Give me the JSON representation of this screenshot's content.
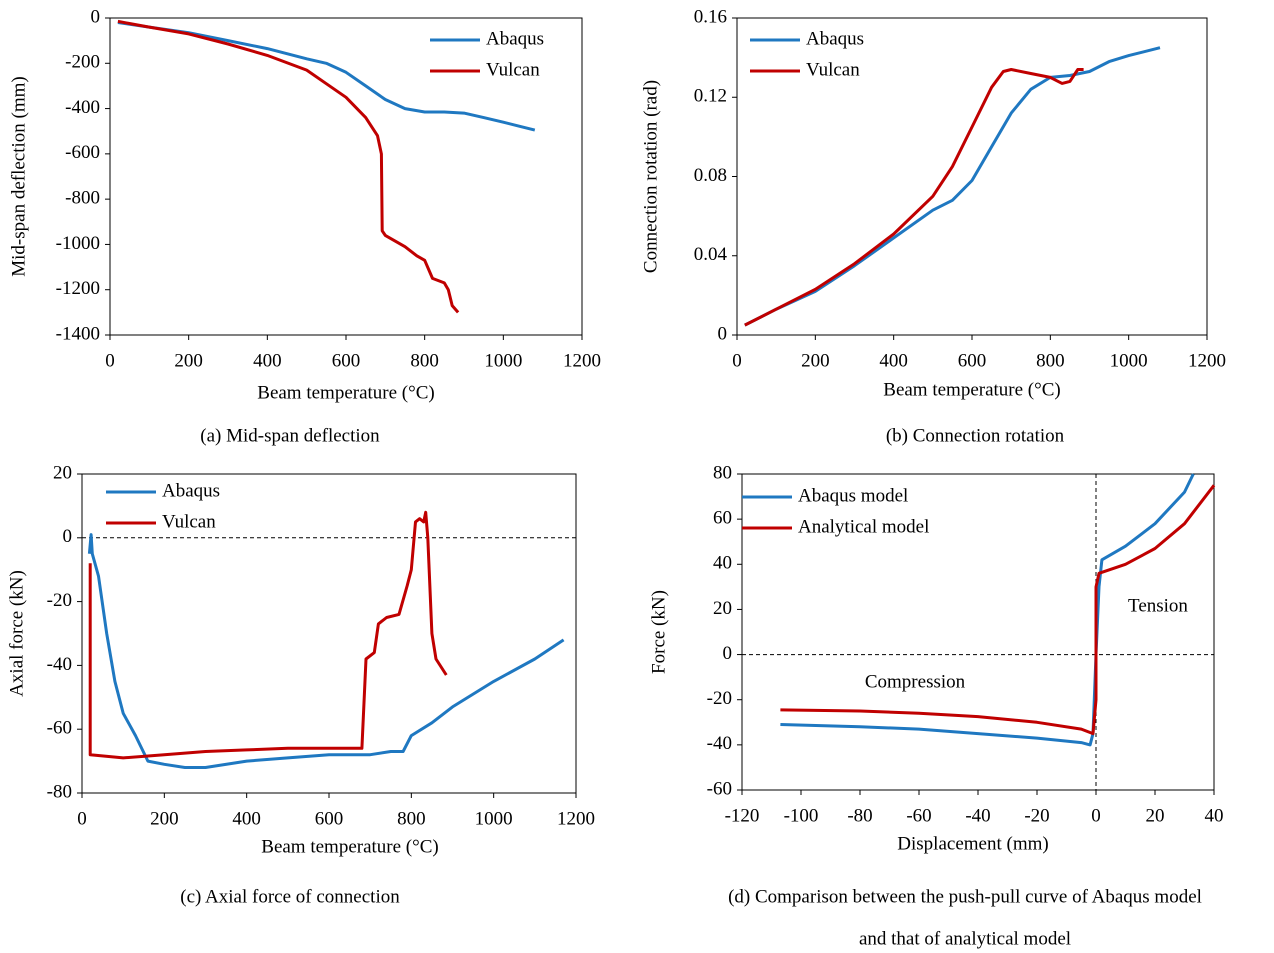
{
  "chart_data": [
    {
      "type": "line",
      "caption": [
        "(a) Mid-span deflection"
      ],
      "x_label": "Beam temperature (°C)",
      "y_label": "Mid-span deflection (mm)",
      "xlim": [
        0,
        1200
      ],
      "xticks": [
        0,
        200,
        400,
        600,
        800,
        1000,
        1200
      ],
      "ylim": [
        -1400,
        0
      ],
      "yticks": [
        0,
        -200,
        -400,
        -600,
        -800,
        -1000,
        -1200,
        -1400
      ],
      "legend": "upper right",
      "series": [
        {
          "name": "Abaqus",
          "color": "#1f78c1",
          "x": [
            20,
            100,
            200,
            300,
            400,
            500,
            550,
            600,
            650,
            700,
            750,
            800,
            850,
            900,
            950,
            1000,
            1080
          ],
          "values": [
            -20,
            -40,
            -65,
            -100,
            -135,
            -180,
            -200,
            -240,
            -300,
            -360,
            -400,
            -415,
            -415,
            -420,
            -440,
            -460,
            -495
          ]
        },
        {
          "name": "Vulcan",
          "color": "#c00000",
          "x": [
            20,
            100,
            200,
            300,
            400,
            500,
            550,
            600,
            650,
            680,
            690,
            692,
            700,
            750,
            780,
            800,
            820,
            850,
            860,
            870,
            885
          ],
          "values": [
            -15,
            -40,
            -70,
            -115,
            -165,
            -230,
            -290,
            -350,
            -440,
            -520,
            -600,
            -940,
            -960,
            -1010,
            -1050,
            -1070,
            -1150,
            -1170,
            -1200,
            -1270,
            -1300
          ]
        }
      ]
    },
    {
      "type": "line",
      "caption": [
        "(b) Connection rotation"
      ],
      "x_label": "Beam temperature (°C)",
      "y_label": "Connection rotation (rad)",
      "xlim": [
        0,
        1200
      ],
      "xticks": [
        0,
        200,
        400,
        600,
        800,
        1000,
        1200
      ],
      "ylim": [
        0,
        0.16
      ],
      "yticks": [
        0,
        0.04,
        0.08,
        0.12,
        0.16
      ],
      "legend": "upper left",
      "series": [
        {
          "name": "Abaqus",
          "color": "#1f78c1",
          "x": [
            20,
            100,
            200,
            300,
            400,
            500,
            550,
            600,
            650,
            700,
            750,
            800,
            850,
            900,
            950,
            1000,
            1080
          ],
          "values": [
            0.005,
            0.013,
            0.022,
            0.035,
            0.049,
            0.063,
            0.068,
            0.078,
            0.095,
            0.112,
            0.124,
            0.13,
            0.131,
            0.133,
            0.138,
            0.141,
            0.145
          ]
        },
        {
          "name": "Vulcan",
          "color": "#c00000",
          "x": [
            20,
            100,
            200,
            300,
            400,
            500,
            550,
            600,
            650,
            680,
            700,
            750,
            800,
            830,
            850,
            870,
            885
          ],
          "values": [
            0.005,
            0.013,
            0.023,
            0.036,
            0.051,
            0.07,
            0.085,
            0.105,
            0.125,
            0.133,
            0.134,
            0.132,
            0.13,
            0.127,
            0.128,
            0.134,
            0.134
          ]
        }
      ]
    },
    {
      "type": "line",
      "caption": [
        "(c) Axial force of connection"
      ],
      "x_label": "Beam temperature (°C)",
      "y_label": "Axial force (kN)",
      "xlim": [
        0,
        1200
      ],
      "xticks": [
        0,
        200,
        400,
        600,
        800,
        1000,
        1200
      ],
      "ylim": [
        -80,
        20
      ],
      "yticks": [
        20,
        0,
        -20,
        -40,
        -60,
        -80
      ],
      "legend": "upper left",
      "zero_line": true,
      "series": [
        {
          "name": "Abaqus",
          "color": "#1f78c1",
          "x": [
            18,
            22,
            25,
            40,
            60,
            80,
            100,
            130,
            160,
            200,
            250,
            300,
            400,
            500,
            600,
            700,
            750,
            780,
            800,
            850,
            900,
            1000,
            1100,
            1170
          ],
          "values": [
            -5,
            1,
            -5,
            -12,
            -30,
            -45,
            -55,
            -62,
            -70,
            -71,
            -72,
            -72,
            -70,
            -69,
            -68,
            -68,
            -67,
            -67,
            -62,
            -58,
            -53,
            -45,
            -38,
            -32
          ]
        },
        {
          "name": "Vulcan",
          "color": "#c00000",
          "x": [
            20,
            20,
            100,
            200,
            300,
            400,
            500,
            600,
            680,
            690,
            710,
            720,
            740,
            770,
            790,
            800,
            810,
            820,
            830,
            835,
            840,
            850,
            860,
            885
          ],
          "values": [
            -8,
            -68,
            -69,
            -68,
            -67,
            -66.5,
            -66,
            -66,
            -66,
            -38,
            -36,
            -27,
            -25,
            -24,
            -15,
            -10,
            5,
            6,
            5,
            8,
            0,
            -30,
            -38,
            -43
          ]
        }
      ]
    },
    {
      "type": "line",
      "caption": [
        "(d) Comparison between the push-pull curve of Abaqus model",
        "and that of analytical model"
      ],
      "x_label": "Displacement (mm)",
      "y_label": "Force (kN)",
      "xlim": [
        -120,
        40
      ],
      "xticks": [
        -120,
        -100,
        -80,
        -60,
        -40,
        -20,
        0,
        20,
        40
      ],
      "ylim": [
        -60,
        80
      ],
      "yticks": [
        80,
        60,
        40,
        20,
        0,
        -20,
        -40,
        -60
      ],
      "legend": "upper left",
      "zero_line": true,
      "x_zero_line": true,
      "annotations": [
        "Compression",
        "Tension"
      ],
      "series": [
        {
          "name": "Abaqus model",
          "color": "#1f78c1",
          "x": [
            -107,
            -80,
            -60,
            -40,
            -20,
            -5,
            -2,
            -1,
            0,
            1,
            2,
            10,
            20,
            30,
            33
          ],
          "values": [
            -31,
            -32,
            -33,
            -35,
            -37,
            -39,
            -40,
            -35,
            0,
            30,
            42,
            48,
            58,
            72,
            80
          ]
        },
        {
          "name": "Analytical model",
          "color": "#c00000",
          "x": [
            -107,
            -80,
            -60,
            -40,
            -20,
            -5,
            -1,
            0,
            0,
            1,
            10,
            20,
            30,
            40
          ],
          "values": [
            -24.5,
            -25,
            -26,
            -27.5,
            -30,
            -33,
            -35,
            -20,
            30,
            36,
            40,
            47,
            58,
            75
          ]
        }
      ]
    }
  ]
}
